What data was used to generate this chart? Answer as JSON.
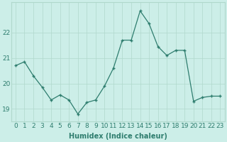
{
  "x": [
    0,
    1,
    2,
    3,
    4,
    5,
    6,
    7,
    8,
    9,
    10,
    11,
    12,
    13,
    14,
    15,
    16,
    17,
    18,
    19,
    20,
    21,
    22,
    23
  ],
  "y": [
    20.7,
    20.85,
    20.3,
    19.85,
    19.35,
    19.55,
    19.35,
    18.8,
    19.25,
    19.35,
    19.9,
    20.6,
    21.7,
    21.7,
    22.85,
    22.35,
    21.45,
    21.1,
    21.3,
    21.3,
    19.3,
    19.45,
    19.5,
    19.5
  ],
  "line_color": "#2e7d6e",
  "marker": "+",
  "marker_size": 3,
  "bg_color": "#cceee8",
  "grid_color": "#b0d8cc",
  "xlabel": "Humidex (Indice chaleur)",
  "ylim": [
    18.5,
    23.2
  ],
  "yticks": [
    19,
    20,
    21,
    22
  ],
  "xlabel_fontsize": 7,
  "tick_fontsize": 6.5
}
